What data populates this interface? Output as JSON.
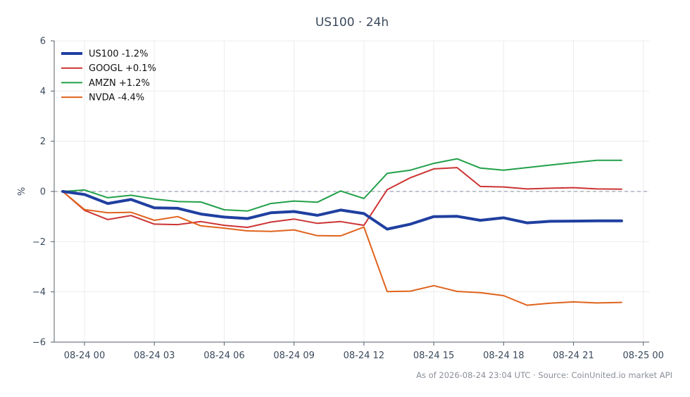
{
  "chart_data": {
    "type": "line",
    "title": "US100 · 24h",
    "ylabel": "%",
    "xlabel": "",
    "ylim": [
      -6,
      6
    ],
    "yticks": [
      -6,
      -4,
      -2,
      0,
      2,
      4,
      6
    ],
    "ytick_labels": [
      "−6",
      "−4",
      "−2",
      "0",
      "2",
      "4",
      "6"
    ],
    "xlim": [
      "2026-08-23 22:42",
      "2026-08-25 00:15"
    ],
    "xticks": [
      {
        "label": "08-24 00",
        "time": "2026-08-24 00:00"
      },
      {
        "label": "08-24 03",
        "time": "2026-08-24 03:00"
      },
      {
        "label": "08-24 06",
        "time": "2026-08-24 06:00"
      },
      {
        "label": "08-24 09",
        "time": "2026-08-24 09:00"
      },
      {
        "label": "08-24 12",
        "time": "2026-08-24 12:00"
      },
      {
        "label": "08-24 15",
        "time": "2026-08-24 15:00"
      },
      {
        "label": "08-24 18",
        "time": "2026-08-24 18:00"
      },
      {
        "label": "08-24 21",
        "time": "2026-08-24 21:00"
      },
      {
        "label": "08-25 00",
        "time": "2026-08-25 00:00"
      }
    ],
    "x": [
      "2026-08-23 23:04",
      "2026-08-24 00:00",
      "2026-08-24 01:00",
      "2026-08-24 02:00",
      "2026-08-24 03:00",
      "2026-08-24 04:00",
      "2026-08-24 05:00",
      "2026-08-24 06:00",
      "2026-08-24 07:00",
      "2026-08-24 08:00",
      "2026-08-24 09:00",
      "2026-08-24 10:00",
      "2026-08-24 11:00",
      "2026-08-24 12:00",
      "2026-08-24 13:00",
      "2026-08-24 14:00",
      "2026-08-24 15:00",
      "2026-08-24 16:00",
      "2026-08-24 17:00",
      "2026-08-24 18:00",
      "2026-08-24 19:00",
      "2026-08-24 20:00",
      "2026-08-24 21:00",
      "2026-08-24 22:00",
      "2026-08-24 23:04"
    ],
    "zero_line": {
      "y": 0,
      "style": "dashed",
      "color": "#9aa3b5"
    },
    "grid": true,
    "legend_position": "top-left",
    "series": [
      {
        "name": "US100 -1.2%",
        "color": "#1f3fa0",
        "width": 4,
        "values": [
          0.0,
          -0.12,
          -0.48,
          -0.32,
          -0.65,
          -0.67,
          -0.9,
          -1.02,
          -1.08,
          -0.85,
          -0.8,
          -0.95,
          -0.74,
          -0.88,
          -1.5,
          -1.3,
          -1.0,
          -0.99,
          -1.15,
          -1.05,
          -1.25,
          -1.19,
          -1.18,
          -1.17,
          -1.17
        ]
      },
      {
        "name": "GOOGL +0.1%",
        "color": "#cc3333",
        "width": 2,
        "values": [
          0.0,
          -0.75,
          -1.12,
          -0.96,
          -1.3,
          -1.32,
          -1.2,
          -1.35,
          -1.43,
          -1.22,
          -1.1,
          -1.27,
          -1.2,
          -1.35,
          0.07,
          0.55,
          0.9,
          0.95,
          0.2,
          0.18,
          0.1,
          0.13,
          0.15,
          0.1,
          0.09
        ]
      },
      {
        "name": "AMZN +1.2%",
        "color": "#22a04a",
        "width": 2,
        "values": [
          0.0,
          0.06,
          -0.25,
          -0.15,
          -0.3,
          -0.4,
          -0.42,
          -0.73,
          -0.78,
          -0.48,
          -0.38,
          -0.43,
          0.02,
          -0.28,
          0.72,
          0.85,
          1.12,
          1.3,
          0.93,
          0.85,
          0.95,
          1.05,
          1.15,
          1.24,
          1.24
        ]
      },
      {
        "name": "NVDA -4.4%",
        "color": "#e0631c",
        "width": 2,
        "values": [
          0.0,
          -0.72,
          -0.85,
          -0.83,
          -1.15,
          -1.0,
          -1.37,
          -1.46,
          -1.57,
          -1.59,
          -1.53,
          -1.76,
          -1.77,
          -1.42,
          -3.99,
          -3.97,
          -3.75,
          -3.98,
          -4.03,
          -4.15,
          -4.53,
          -4.45,
          -4.4,
          -4.44,
          -4.42
        ]
      }
    ]
  },
  "footer": "As of 2026-08-24 23:04 UTC · Source: CoinUnited.io market API"
}
